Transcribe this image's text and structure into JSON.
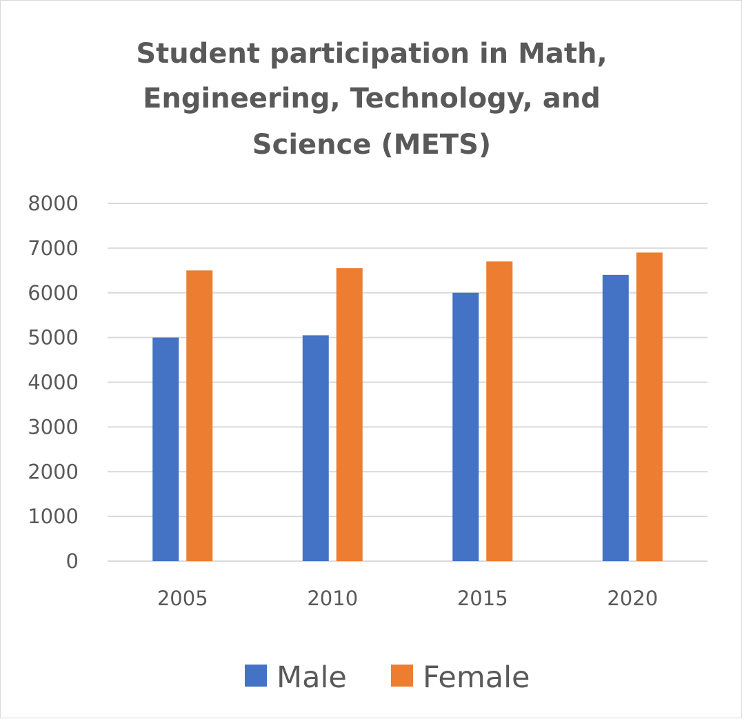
{
  "chart_data": {
    "type": "bar",
    "title": "Student participation in Math, Engineering, Technology, and Science (METS)",
    "title_lines": [
      "Student participation in Math,",
      "Engineering, Technology, and",
      "Science (METS)"
    ],
    "categories": [
      "2005",
      "2010",
      "2015",
      "2020"
    ],
    "series": [
      {
        "name": "Male",
        "color": "#4472C4",
        "values": [
          5000,
          5050,
          6000,
          6400
        ]
      },
      {
        "name": "Female",
        "color": "#ED7D31",
        "values": [
          6500,
          6550,
          6700,
          6900
        ]
      }
    ],
    "ylim": [
      0,
      8000
    ],
    "yticks": [
      0,
      1000,
      2000,
      3000,
      4000,
      5000,
      6000,
      7000,
      8000
    ],
    "xlabel": "",
    "ylabel": "",
    "grid": true,
    "legend": "bottom"
  }
}
